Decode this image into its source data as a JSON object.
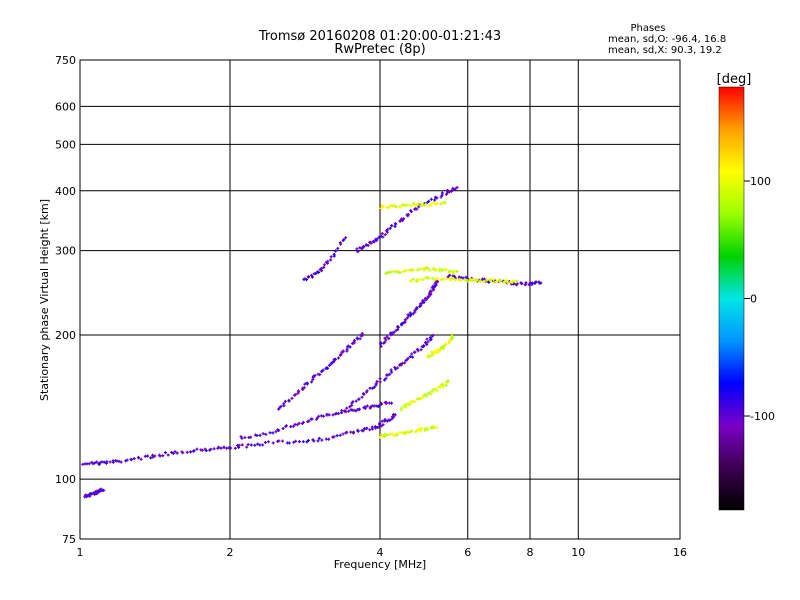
{
  "chart_data": {
    "type": "scatter",
    "title": "Tromsø 20160208 01:20:00-01:21:43",
    "subtitle": "RwPretec (8p)",
    "xlabel": "Frequency [MHz]",
    "ylabel": "Stationary phase Virtual Height [km]",
    "x_scale": "log",
    "y_scale": "log",
    "xlim": [
      1,
      16
    ],
    "ylim": [
      75,
      750
    ],
    "x_ticks": [
      1,
      2,
      4,
      6,
      8,
      10,
      16
    ],
    "y_ticks": [
      75,
      100,
      200,
      300,
      400,
      500,
      600,
      750
    ],
    "grid": true,
    "stats": {
      "heading": "Phases",
      "line_o": "mean, sd,O: -96.4, 16.8",
      "line_x": "mean, sd,X:  90.3, 19.2"
    },
    "colorbar": {
      "label": "[deg]",
      "range": [
        -180,
        180
      ],
      "ticks": [
        100,
        0,
        -100
      ],
      "stops": [
        "#000000",
        "#3c0050",
        "#7a00c8",
        "#0000ff",
        "#0096ff",
        "#00e6e6",
        "#00d200",
        "#9bff00",
        "#ffff00",
        "#ffa000",
        "#ff0000"
      ]
    },
    "series": [
      {
        "mode": "O",
        "phase_deg": -100,
        "traces": [
          {
            "x": [
              1.02,
              1.1,
              1.2,
              1.35,
              1.5,
              1.7,
              1.9,
              2.1,
              2.4,
              2.8,
              3.2,
              3.6,
              3.9,
              4.1,
              4.3
            ],
            "y": [
              108,
              108,
              109,
              111,
              113,
              115,
              116,
              117,
              119,
              120,
              122,
              126,
              128,
              132,
              136
            ]
          },
          {
            "x": [
              2.1,
              2.4,
              2.7,
              3.0,
              3.3,
              3.6,
              3.9,
              4.2
            ],
            "y": [
              122,
              125,
              130,
              134,
              138,
              140,
              142,
              145
            ]
          },
          {
            "x": [
              2.5,
              2.7,
              2.9,
              3.1,
              3.3,
              3.5,
              3.7
            ],
            "y": [
              140,
              150,
              160,
              170,
              180,
              190,
              200
            ]
          },
          {
            "x": [
              3.4,
              3.7,
              4.0,
              4.3,
              4.6,
              4.9,
              5.1
            ],
            "y": [
              140,
              150,
              160,
              170,
              180,
              190,
              200
            ]
          },
          {
            "x": [
              4.0,
              4.2,
              4.4,
              4.6,
              4.8,
              5.0,
              5.1,
              5.2
            ],
            "y": [
              190,
              200,
              210,
              220,
              230,
              240,
              250,
              260
            ]
          },
          {
            "x": [
              3.6,
              3.8,
              4.0,
              4.3,
              4.6,
              5.0,
              5.4,
              5.7
            ],
            "y": [
              300,
              310,
              320,
              340,
              360,
              380,
              395,
              405
            ]
          },
          {
            "x": [
              5.5,
              6.0,
              6.5,
              7.0,
              7.5,
              8.0,
              8.4
            ],
            "y": [
              265,
              262,
              260,
              258,
              256,
              256,
              258
            ]
          },
          {
            "x": [
              1.02,
              1.05,
              1.08,
              1.12
            ],
            "y": [
              92,
              93,
              94,
              95
            ]
          },
          {
            "x": [
              2.8,
              3.0,
              3.2,
              3.4
            ],
            "y": [
              260,
              270,
              290,
              320
            ]
          }
        ]
      },
      {
        "mode": "X",
        "phase_deg": 95,
        "traces": [
          {
            "x": [
              4.0,
              4.3,
              4.6,
              4.9,
              5.2
            ],
            "y": [
              123,
              124,
              126,
              127,
              129
            ]
          },
          {
            "x": [
              4.4,
              4.7,
              5.0,
              5.3,
              5.5
            ],
            "y": [
              140,
              146,
              150,
              156,
              160
            ]
          },
          {
            "x": [
              5.0,
              5.2,
              5.4,
              5.6
            ],
            "y": [
              180,
              185,
              190,
              198
            ]
          },
          {
            "x": [
              4.6,
              5.0,
              5.5,
              6.0,
              6.5,
              7.0,
              7.5
            ],
            "y": [
              260,
              262,
              261,
              260,
              260,
              259,
              259
            ]
          },
          {
            "x": [
              4.0,
              4.3,
              4.6,
              5.0,
              5.4
            ],
            "y": [
              370,
              372,
              374,
              375,
              376
            ]
          },
          {
            "x": [
              4.1,
              4.5,
              4.9,
              5.3,
              5.7
            ],
            "y": [
              270,
              272,
              275,
              273,
              270
            ]
          }
        ]
      }
    ]
  }
}
